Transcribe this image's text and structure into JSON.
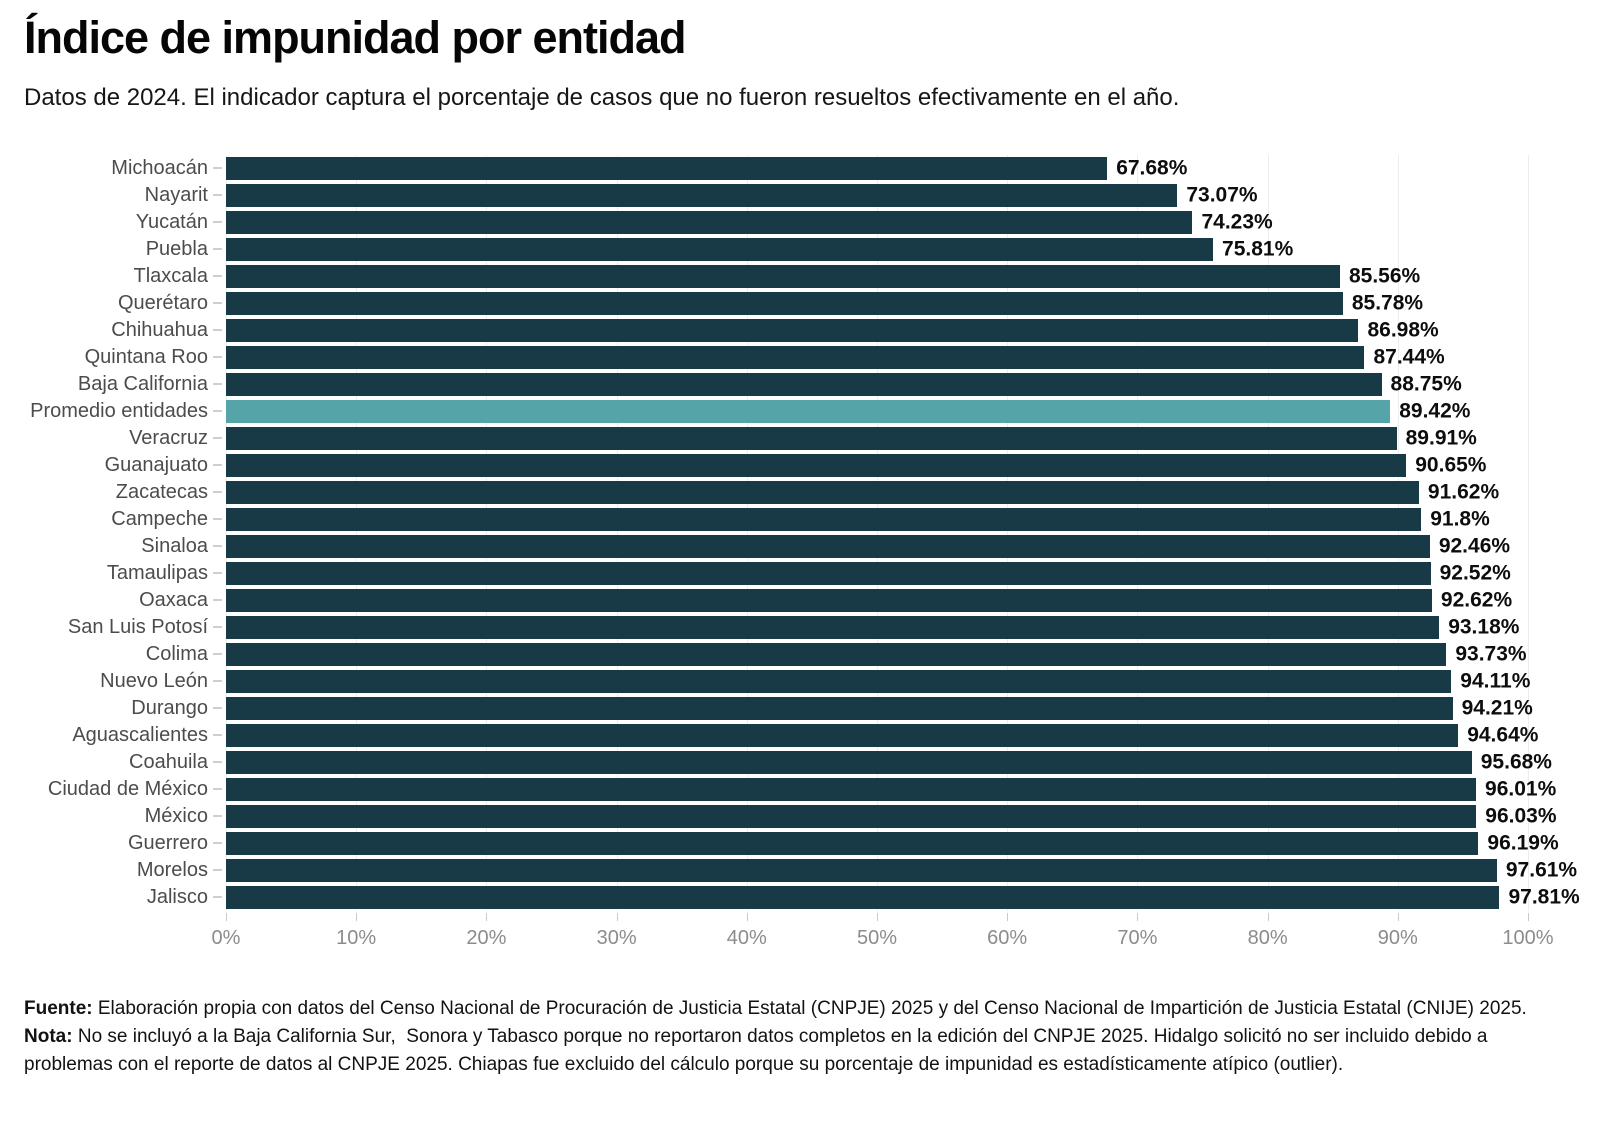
{
  "header": {
    "title": "Índice de impunidad por entidad",
    "subtitle": "Datos de 2024. El indicador captura el porcentaje de casos que no fueron resueltos efectivamente en el año."
  },
  "chart_data": {
    "type": "bar",
    "orientation": "horizontal",
    "title": "Índice de impunidad por entidad",
    "xlabel": "",
    "ylabel": "",
    "xlim": [
      0,
      100
    ],
    "grid": "faint-vertical",
    "categories": [
      "Michoacán",
      "Nayarit",
      "Yucatán",
      "Puebla",
      "Tlaxcala",
      "Querétaro",
      "Chihuahua",
      "Quintana Roo",
      "Baja California",
      "Promedio entidades",
      "Veracruz",
      "Guanajuato",
      "Zacatecas",
      "Campeche",
      "Sinaloa",
      "Tamaulipas",
      "Oaxaca",
      "San Luis Potosí",
      "Colima",
      "Nuevo León",
      "Durango",
      "Aguascalientes",
      "Coahuila",
      "Ciudad de México",
      "México",
      "Guerrero",
      "Morelos",
      "Jalisco"
    ],
    "values": [
      67.68,
      73.07,
      74.23,
      75.81,
      85.56,
      85.78,
      86.98,
      87.44,
      88.75,
      89.42,
      89.91,
      90.65,
      91.62,
      91.8,
      92.46,
      92.52,
      92.62,
      93.18,
      93.73,
      94.11,
      94.21,
      94.64,
      95.68,
      96.01,
      96.03,
      96.19,
      97.61,
      97.81
    ],
    "value_labels": [
      "67.68%",
      "73.07%",
      "74.23%",
      "75.81%",
      "85.56%",
      "85.78%",
      "86.98%",
      "87.44%",
      "88.75%",
      "89.42%",
      "89.91%",
      "90.65%",
      "91.62%",
      "91.8%",
      "92.46%",
      "92.52%",
      "92.62%",
      "93.18%",
      "93.73%",
      "94.11%",
      "94.21%",
      "94.64%",
      "95.68%",
      "96.01%",
      "96.03%",
      "96.19%",
      "97.61%",
      "97.81%"
    ],
    "highlight_category": "Promedio entidades",
    "colors": {
      "bar": "#173a46",
      "highlight": "#54a4a8",
      "value_label": "#0d0d0d",
      "category_label": "#4c4c4c",
      "axis_label": "#8c8c8c",
      "tick": "#c9c9c9",
      "grid": "#ededed"
    },
    "x_axis": {
      "tick_values": [
        0,
        10,
        20,
        30,
        40,
        50,
        60,
        70,
        80,
        90,
        100
      ],
      "tick_labels": [
        "0%",
        "10%",
        "20%",
        "30%",
        "40%",
        "50%",
        "60%",
        "70%",
        "80%",
        "90%",
        "100%"
      ]
    }
  },
  "footer": {
    "fuente_label": "Fuente:",
    "fuente_text": " Elaboración propia con datos del Censo Nacional de Procuración de Justicia Estatal (CNPJE) 2025 y del Censo Nacional de Impartición de Justicia Estatal (CNIJE) 2025.",
    "nota_label": "Nota:",
    "nota_text": " No se incluyó a la Baja California Sur,  Sonora y Tabasco porque no reportaron datos completos en la edición del CNPJE 2025. Hidalgo solicitó no ser incluido debido a problemas con el reporte de datos al CNPJE 2025. Chiapas fue excluido del cálculo porque su porcentaje de impunidad es estadísticamente atípico (outlier)."
  }
}
